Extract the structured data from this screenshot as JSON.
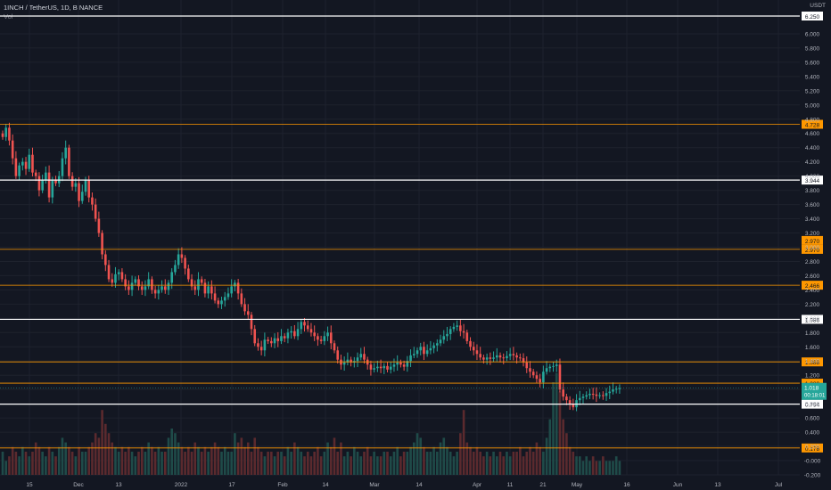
{
  "header": {
    "symbol_line": "1INCH / TetherUS, 1D, BINANCE",
    "indicator": "Vol",
    "currency": "USDT"
  },
  "colors": {
    "background": "#131722",
    "grid": "#1e222d",
    "up": "#26a69a",
    "down": "#ef5350",
    "up_vol": "#1f4b49",
    "down_vol": "#5b2a2e",
    "orange_line": "#ff9800",
    "white_line": "#ffffff",
    "axis_text": "#b2b5be"
  },
  "chart_data": {
    "type": "candlestick",
    "title": "1INCH / TetherUS, 1D, BINANCE",
    "ylim": [
      -0.2,
      6.4
    ],
    "y_ticks": [
      "6.000",
      "5.800",
      "5.600",
      "5.400",
      "5.200",
      "5.000",
      "4.800",
      "4.600",
      "4.400",
      "4.200",
      "4.000",
      "3.800",
      "3.600",
      "3.400",
      "3.200",
      "3.000",
      "2.800",
      "2.600",
      "2.400",
      "2.200",
      "2.000",
      "1.800",
      "1.600",
      "1.400",
      "1.200",
      "1.000",
      "0.800",
      "0.600",
      "0.400",
      "0.200",
      "-0.000",
      "-0.200"
    ],
    "x_tick_labels": [
      "15",
      "Dec",
      "13",
      "2022",
      "17",
      "Feb",
      "14",
      "Mar",
      "14",
      "Apr",
      "11",
      "21",
      "May",
      "16",
      "Jun",
      "13",
      "Jul"
    ],
    "first_date": "2021-11-07",
    "bars": 195,
    "closes": [
      4.55,
      4.68,
      4.5,
      4.25,
      4.0,
      4.15,
      4.2,
      4.1,
      4.3,
      4.05,
      4.0,
      3.8,
      3.95,
      4.05,
      3.7,
      3.95,
      3.9,
      4.0,
      4.25,
      4.4,
      4.0,
      3.85,
      3.9,
      3.65,
      3.78,
      3.95,
      3.7,
      3.6,
      3.4,
      3.2,
      2.9,
      2.75,
      2.55,
      2.5,
      2.62,
      2.65,
      2.55,
      2.45,
      2.4,
      2.5,
      2.55,
      2.45,
      2.4,
      2.45,
      2.55,
      2.4,
      2.35,
      2.4,
      2.45,
      2.4,
      2.5,
      2.65,
      2.75,
      2.9,
      2.85,
      2.7,
      2.55,
      2.45,
      2.4,
      2.55,
      2.5,
      2.35,
      2.45,
      2.35,
      2.25,
      2.2,
      2.25,
      2.3,
      2.35,
      2.45,
      2.5,
      2.35,
      2.2,
      2.1,
      2.05,
      1.85,
      1.65,
      1.6,
      1.55,
      1.7,
      1.68,
      1.65,
      1.72,
      1.68,
      1.75,
      1.72,
      1.8,
      1.82,
      1.75,
      1.85,
      1.95,
      1.9,
      1.85,
      1.8,
      1.75,
      1.7,
      1.68,
      1.75,
      1.8,
      1.65,
      1.55,
      1.42,
      1.35,
      1.38,
      1.42,
      1.38,
      1.4,
      1.45,
      1.5,
      1.42,
      1.35,
      1.28,
      1.3,
      1.32,
      1.3,
      1.33,
      1.28,
      1.32,
      1.35,
      1.38,
      1.35,
      1.32,
      1.4,
      1.48,
      1.5,
      1.55,
      1.6,
      1.5,
      1.55,
      1.58,
      1.62,
      1.65,
      1.7,
      1.75,
      1.78,
      1.85,
      1.88,
      1.9,
      1.82,
      1.8,
      1.68,
      1.6,
      1.55,
      1.5,
      1.45,
      1.42,
      1.45,
      1.43,
      1.45,
      1.48,
      1.45,
      1.44,
      1.47,
      1.5,
      1.48,
      1.45,
      1.44,
      1.38,
      1.3,
      1.25,
      1.2,
      1.15,
      1.1,
      1.25,
      1.3,
      1.32,
      1.33,
      1.35,
      1.0,
      0.9,
      0.85,
      0.8,
      0.75,
      0.85,
      0.88,
      0.9,
      0.92,
      0.94,
      0.93,
      0.91,
      0.92,
      0.91,
      0.95,
      0.97,
      1.0,
      1.01,
      1.018
    ],
    "volumes_millions": [
      5,
      3,
      4,
      6,
      5,
      4,
      6,
      5,
      4,
      5,
      7,
      6,
      5,
      4,
      6,
      5,
      4,
      6,
      8,
      7,
      6,
      5,
      4,
      6,
      5,
      5,
      6,
      7,
      9,
      8,
      14,
      11,
      9,
      7,
      6,
      5,
      6,
      5,
      6,
      5,
      4,
      5,
      6,
      5,
      7,
      6,
      5,
      6,
      5,
      5,
      8,
      10,
      9,
      7,
      6,
      5,
      6,
      5,
      7,
      6,
      5,
      6,
      5,
      6,
      7,
      6,
      5,
      6,
      5,
      5,
      9,
      7,
      8,
      6,
      7,
      5,
      8,
      6,
      5,
      4,
      5,
      5,
      4,
      5,
      5,
      4,
      6,
      5,
      7,
      6,
      5,
      4,
      5,
      4,
      5,
      6,
      4,
      5,
      7,
      6,
      8,
      5,
      7,
      4,
      5,
      4,
      6,
      5,
      4,
      5,
      6,
      4,
      5,
      4,
      4,
      5,
      5,
      4,
      5,
      6,
      4,
      5,
      5,
      6,
      7,
      9,
      8,
      6,
      5,
      5,
      6,
      5,
      7,
      8,
      6,
      5,
      4,
      5,
      9,
      14,
      7,
      6,
      5,
      6,
      5,
      4,
      5,
      4,
      5,
      4,
      5,
      4,
      5,
      4,
      5,
      5,
      6,
      4,
      5,
      6,
      5,
      7,
      6,
      5,
      8,
      12,
      20,
      22,
      18,
      12,
      9,
      6,
      5,
      4,
      4,
      3,
      4,
      3,
      4,
      3,
      3,
      4,
      3,
      3,
      3,
      4,
      3
    ],
    "horizontal_levels": [
      {
        "price": 6.25,
        "label": "6.250",
        "color": "#ffffff"
      },
      {
        "price": 4.728,
        "label": "4.728",
        "color": "#ff9800"
      },
      {
        "price": 3.944,
        "label": "3.944",
        "color": "#ffffff"
      },
      {
        "price": 2.97,
        "label": "2.970",
        "color": "#ff9800"
      },
      {
        "price": 2.466,
        "label": "2.466",
        "color": "#ff9800"
      },
      {
        "price": 1.986,
        "label": "1.986",
        "color": "#ffffff"
      },
      {
        "price": 1.388,
        "label": "1.388",
        "color": "#ff9800"
      },
      {
        "price": 1.089,
        "label": "1.089",
        "color": "#ff9800"
      },
      {
        "price": 0.794,
        "label": "0.794",
        "color": "#ffffff"
      },
      {
        "price": 0.178,
        "label": "0.178",
        "color": "#ff9800"
      }
    ],
    "extra_price_labels": [
      {
        "price": 2.97,
        "label": "2.970",
        "color": "#ff9800"
      }
    ],
    "current_price": {
      "value": 1.018,
      "label": "1.018",
      "countdown": "00:18:01",
      "color": "#26a69a"
    }
  }
}
